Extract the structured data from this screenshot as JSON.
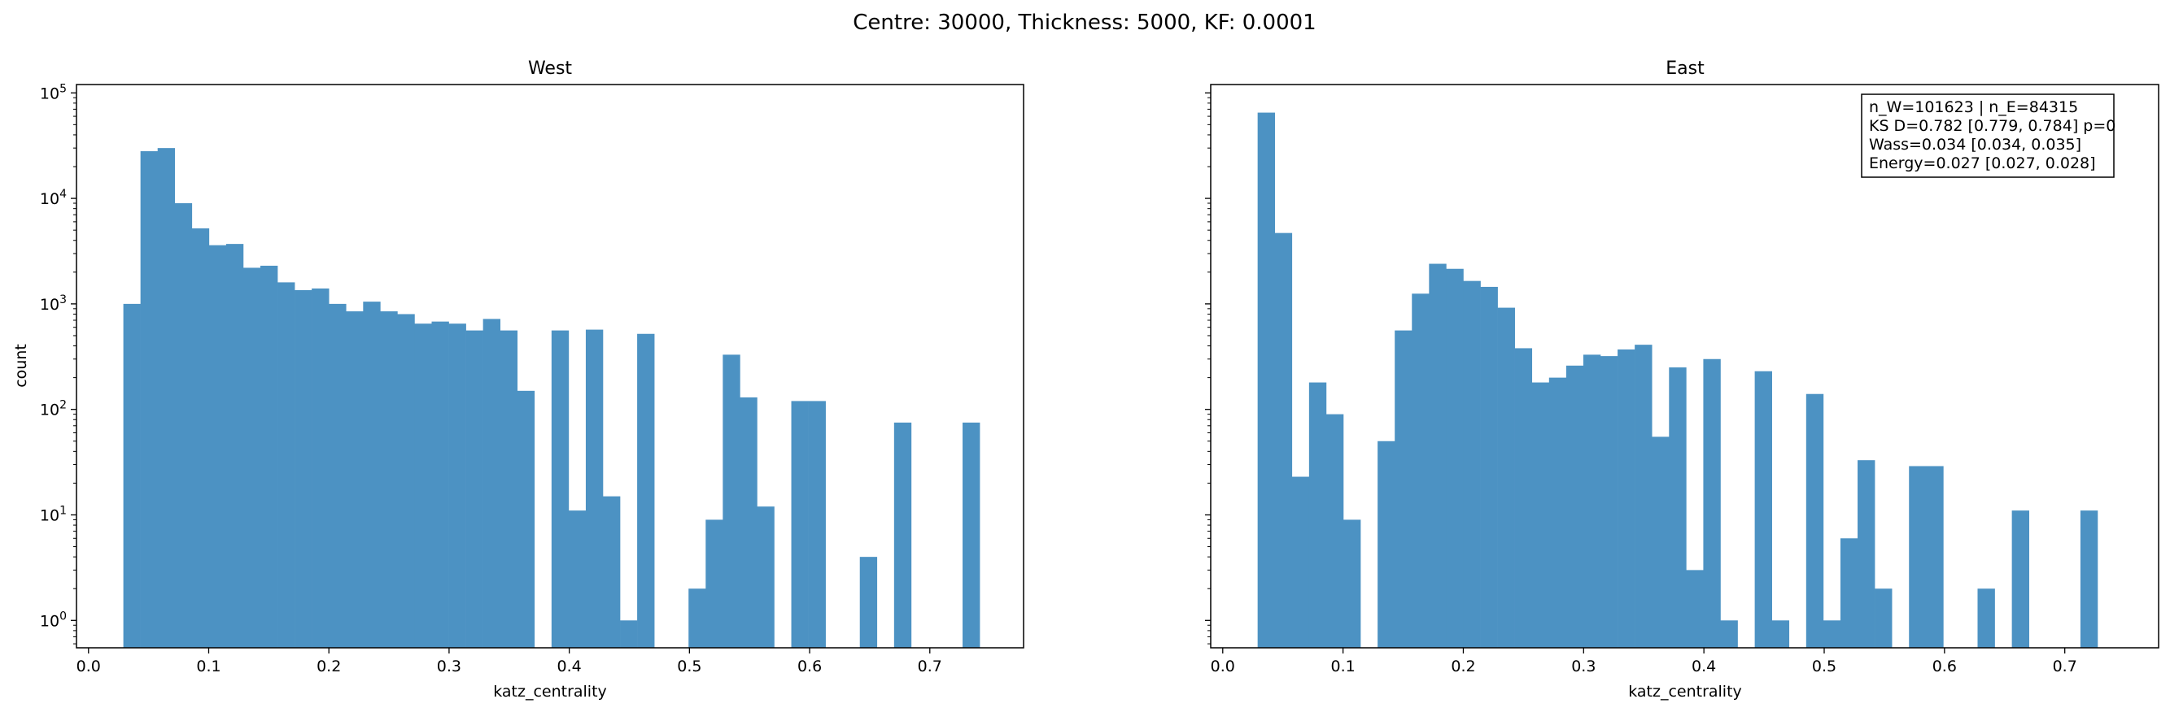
{
  "figure_title": "Centre: 30000, Thickness: 5000, KF: 0.0001",
  "colors": {
    "bar": "#4c92c3",
    "axis": "#000000",
    "background": "#ffffff"
  },
  "chart_data": [
    {
      "type": "bar",
      "title": "West",
      "xlabel": "katz_centrality",
      "ylabel": "count",
      "yscale": "log",
      "xlim": [
        -0.01,
        0.778
      ],
      "ylim": [
        0.55,
        120000
      ],
      "xticks": [
        0.0,
        0.1,
        0.2,
        0.3,
        0.4,
        0.5,
        0.6,
        0.7
      ],
      "xtick_labels": [
        "0.0",
        "0.1",
        "0.2",
        "0.3",
        "0.4",
        "0.5",
        "0.6",
        "0.7"
      ],
      "yticks": [
        1,
        10,
        100,
        1000,
        10000,
        100000
      ],
      "ytick_labels": [
        "10^0",
        "10^1",
        "10^2",
        "10^3",
        "10^4",
        "10^5"
      ],
      "bin_start": 0.029,
      "bin_width": 0.01425,
      "values": [
        1000,
        28000,
        30000,
        9000,
        5200,
        3600,
        3700,
        2200,
        2300,
        1600,
        1350,
        1400,
        1000,
        850,
        1050,
        850,
        800,
        650,
        680,
        650,
        560,
        720,
        560,
        150,
        0,
        560,
        11,
        570,
        15,
        1,
        520,
        0,
        0,
        2,
        9,
        330,
        130,
        12,
        0,
        120,
        120,
        0,
        0,
        4,
        0,
        75,
        0,
        0,
        0,
        75
      ]
    },
    {
      "type": "bar",
      "title": "East",
      "xlabel": "katz_centrality",
      "ylabel": "",
      "yscale": "log",
      "xlim": [
        -0.01,
        0.778
      ],
      "ylim": [
        0.55,
        120000
      ],
      "xticks": [
        0.0,
        0.1,
        0.2,
        0.3,
        0.4,
        0.5,
        0.6,
        0.7
      ],
      "xtick_labels": [
        "0.0",
        "0.1",
        "0.2",
        "0.3",
        "0.4",
        "0.5",
        "0.6",
        "0.7"
      ],
      "yticks": [
        1,
        10,
        100,
        1000,
        10000,
        100000
      ],
      "ytick_labels": [],
      "bin_start": 0.029,
      "bin_width": 0.01425,
      "values": [
        65000,
        4700,
        23,
        180,
        90,
        9,
        0,
        50,
        560,
        1250,
        2400,
        2150,
        1650,
        1450,
        920,
        380,
        180,
        200,
        260,
        330,
        320,
        370,
        410,
        55,
        250,
        3,
        300,
        1,
        0,
        230,
        1,
        0,
        140,
        1,
        6,
        33,
        2,
        0,
        29,
        29,
        0,
        0,
        2,
        0,
        11,
        0,
        0,
        0,
        11
      ],
      "annotation": [
        "n_W=101623 | n_E=84315",
        "KS D=0.782 [0.779, 0.784]  p=0",
        "Wass=0.034 [0.034, 0.035]",
        "Energy=0.027 [0.027, 0.028]"
      ]
    }
  ]
}
